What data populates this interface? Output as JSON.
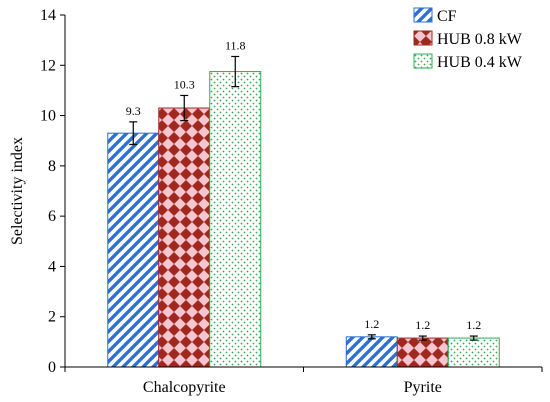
{
  "chart_data": {
    "type": "bar",
    "title": "",
    "xlabel": "",
    "ylabel": "Selectivity index",
    "ylim": [
      0,
      14
    ],
    "yticks": [
      0,
      2,
      4,
      6,
      8,
      10,
      12,
      14
    ],
    "grid": false,
    "legend_position": "top-right",
    "categories": [
      "Chalcopyrite",
      "Pyrite"
    ],
    "series": [
      {
        "name": "CF",
        "values": [
          9.3,
          1.2
        ],
        "error": [
          0.45,
          0.08
        ],
        "labels": [
          "9.3",
          "1.2"
        ],
        "color": "#2e6fd1",
        "pattern": "diagonal-stripes"
      },
      {
        "name": "HUB 0.8 kW",
        "values": [
          10.3,
          1.15
        ],
        "error": [
          0.5,
          0.08
        ],
        "labels": [
          "10.3",
          "1.2"
        ],
        "color": "#a0281e",
        "pattern": "diamond-checker"
      },
      {
        "name": "HUB 0.4 kW",
        "values": [
          11.75,
          1.15
        ],
        "error": [
          0.6,
          0.08
        ],
        "labels": [
          "11.8",
          "1.2"
        ],
        "color": "#2fa84f",
        "pattern": "dots"
      }
    ]
  }
}
